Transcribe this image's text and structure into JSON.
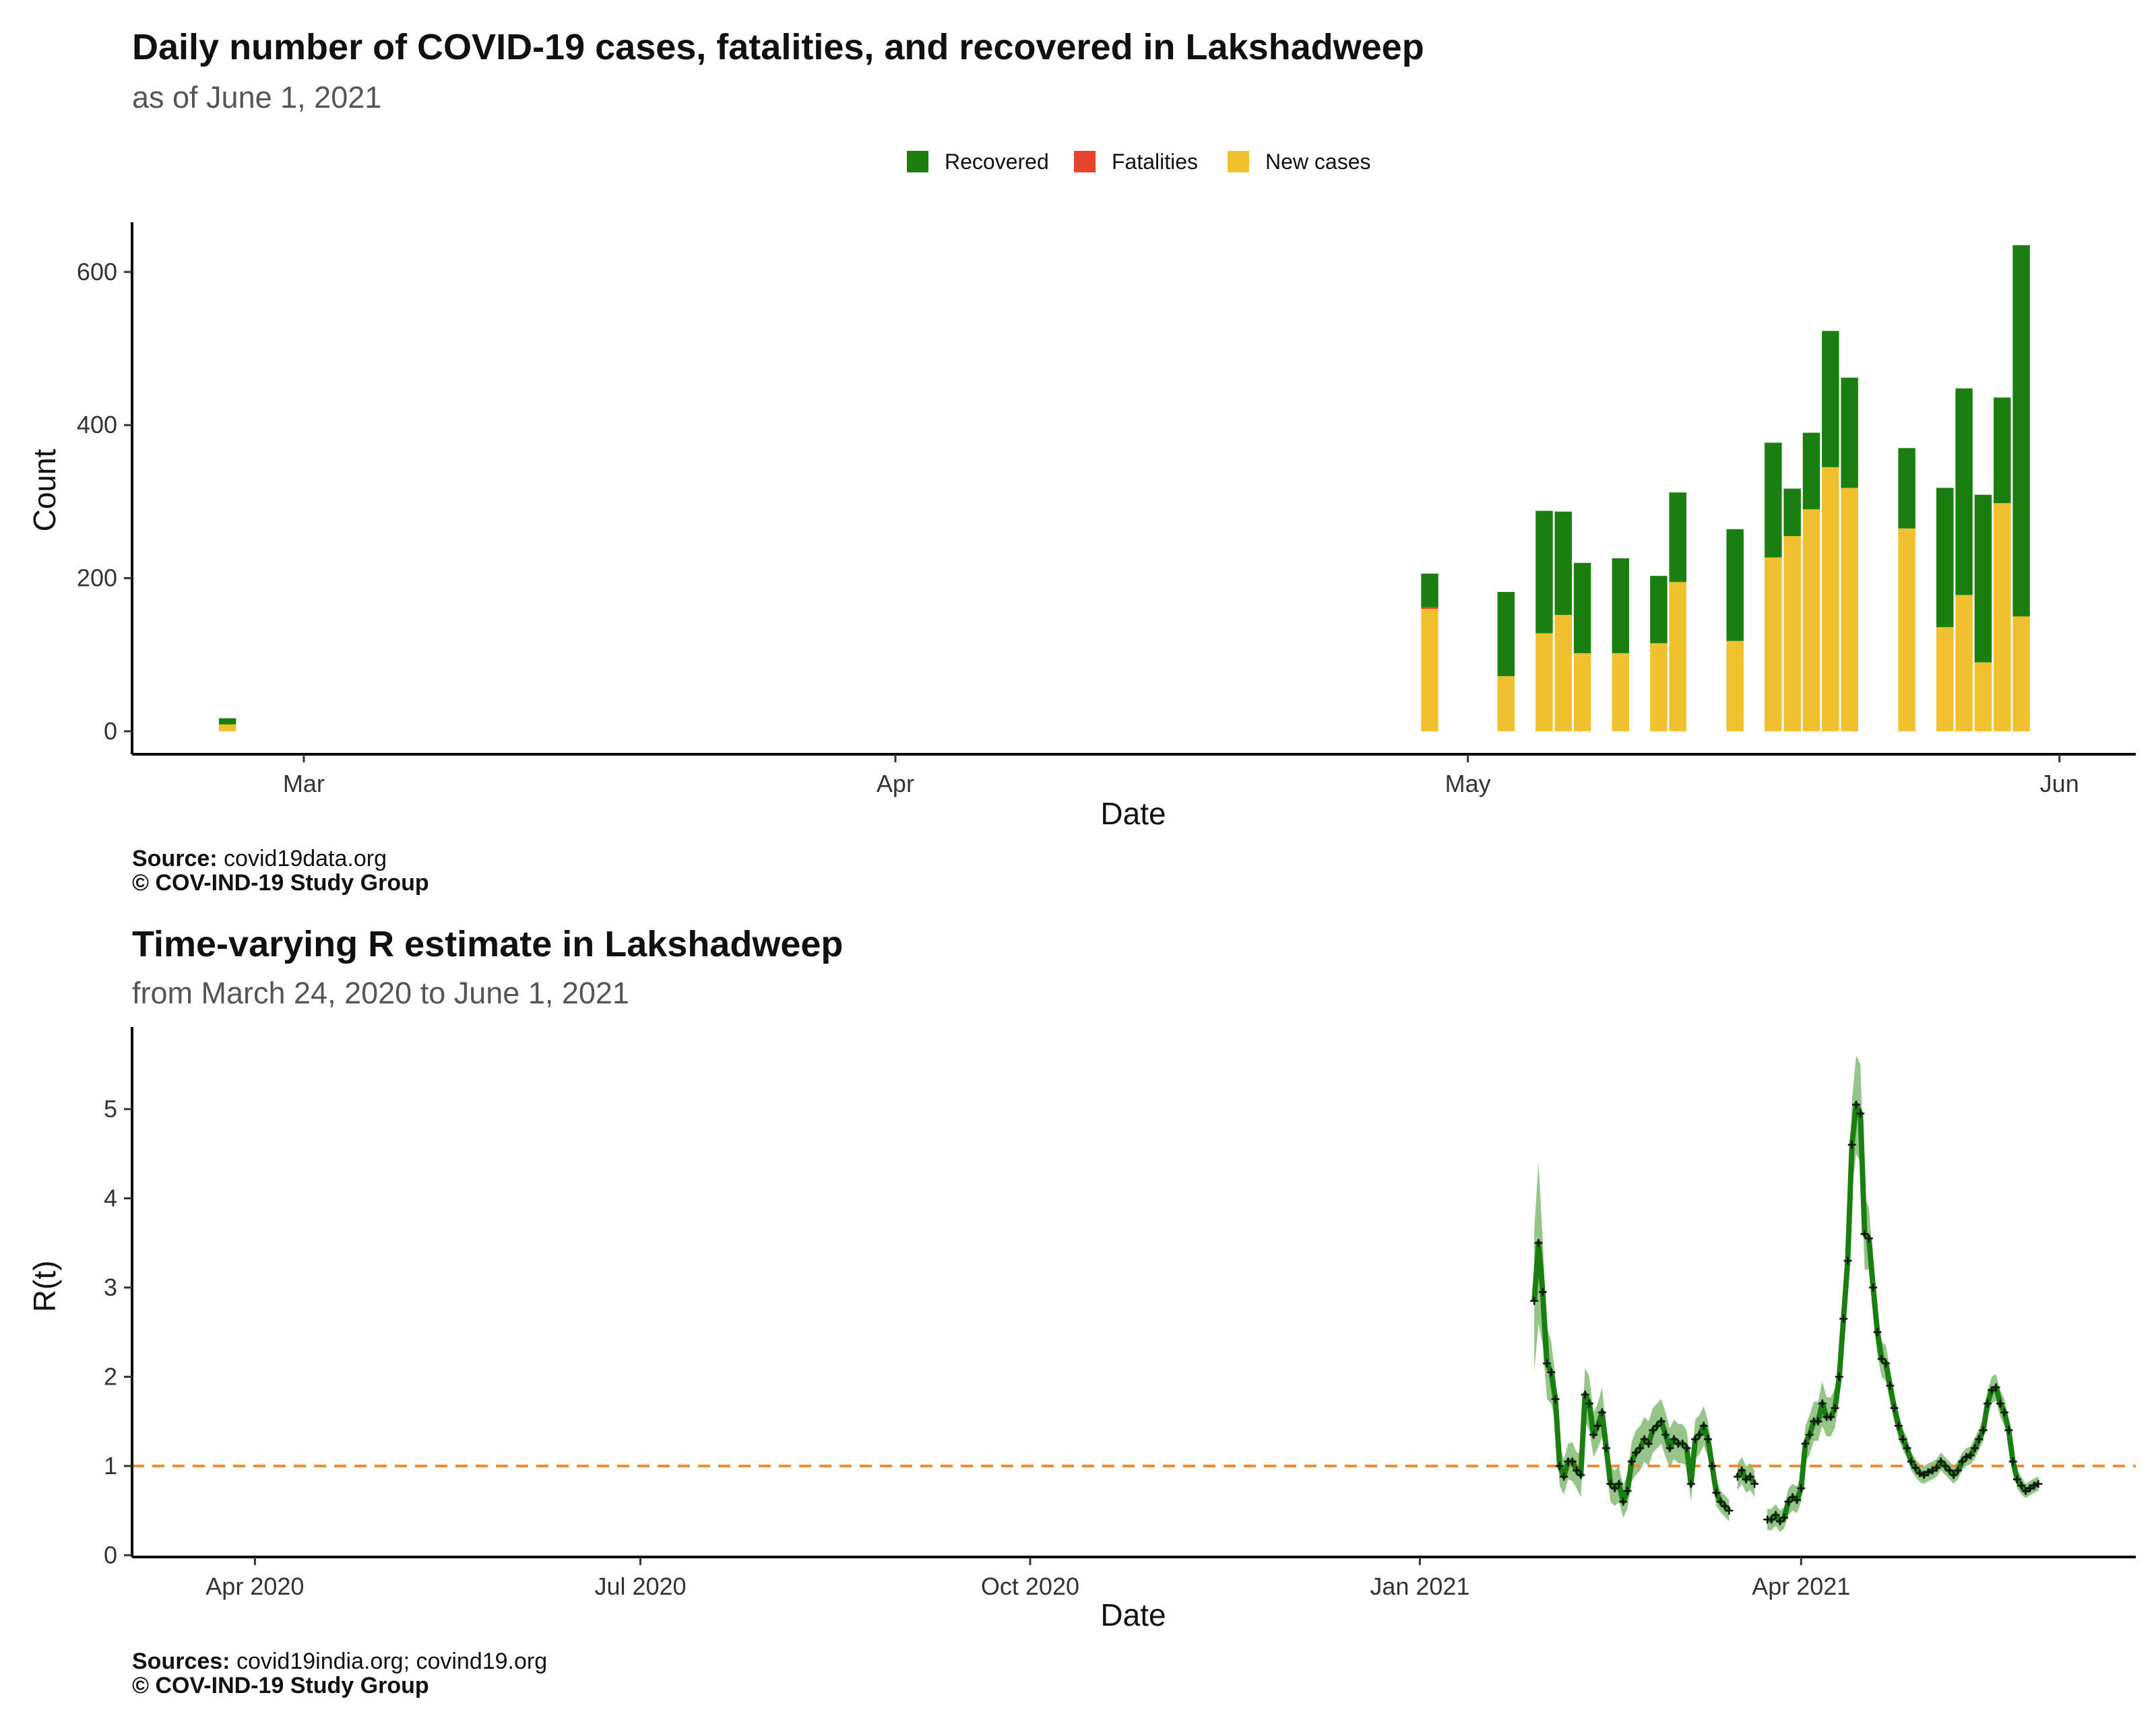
{
  "chart_data": [
    {
      "type": "bar",
      "stacked": true,
      "title": "Daily number of COVID-19 cases, fatalities, and recovered in Lakshadweep",
      "subtitle": "as of June  1, 2021",
      "xlabel": "Date",
      "ylabel": "Count",
      "x_tick_labels": [
        "Mar",
        "Apr",
        "May",
        "Jun"
      ],
      "x_ticks": [
        "2021-03-01",
        "2021-04-01",
        "2021-05-01",
        "2021-06-01"
      ],
      "y_ticks": [
        0,
        200,
        400,
        600
      ],
      "ylim": [
        -30,
        665
      ],
      "xlim": [
        "2021-02-20",
        "2021-06-05"
      ],
      "grid": false,
      "legend_position": "top",
      "colors": {
        "Recovered": "#1a7f10",
        "Fatalities": "#e8432f",
        "New cases": "#f0c02e"
      },
      "legend": [
        "Recovered",
        "Fatalities",
        "New cases"
      ],
      "series_order_bottom_to_top": [
        "New cases",
        "Fatalities",
        "Recovered"
      ],
      "x": [
        "2021-02-25",
        "2021-04-29",
        "2021-05-03",
        "2021-05-05",
        "2021-05-06",
        "2021-05-07",
        "2021-05-09",
        "2021-05-11",
        "2021-05-12",
        "2021-05-15",
        "2021-05-17",
        "2021-05-18",
        "2021-05-19",
        "2021-05-20",
        "2021-05-21",
        "2021-05-24",
        "2021-05-26",
        "2021-05-27",
        "2021-05-28",
        "2021-05-29",
        "2021-05-30"
      ],
      "series": [
        {
          "name": "New cases",
          "values": [
            9,
            160,
            72,
            128,
            152,
            102,
            102,
            115,
            195,
            118,
            227,
            255,
            290,
            345,
            318,
            265,
            136,
            178,
            90,
            298,
            150
          ]
        },
        {
          "name": "Fatalities",
          "values": [
            0,
            2,
            0,
            0,
            0,
            0,
            0,
            0,
            0,
            0,
            0,
            0,
            0,
            0,
            0,
            0,
            0,
            0,
            0,
            0,
            0
          ]
        },
        {
          "name": "Recovered",
          "values": [
            8,
            44,
            110,
            160,
            135,
            118,
            124,
            88,
            117,
            146,
            150,
            62,
            100,
            178,
            144,
            105,
            182,
            270,
            219,
            138,
            485
          ]
        }
      ],
      "source_label": "Source:",
      "source_text": "covid19data.org",
      "copyright": "© COV-IND-19 Study Group"
    },
    {
      "type": "line",
      "title": "Time-varying R estimate in Lakshadweep",
      "subtitle": "from March 24, 2020 to June  1, 2021",
      "xlabel": "Date",
      "ylabel": "R(t)",
      "x_tick_labels": [
        "Apr 2020",
        "Jul 2020",
        "Oct 2020",
        "Jan 2021",
        "Apr 2021"
      ],
      "x_ticks": [
        "2020-04-01",
        "2020-07-01",
        "2020-10-01",
        "2021-01-01",
        "2021-04-01"
      ],
      "y_ticks": [
        0,
        1,
        2,
        3,
        4,
        5
      ],
      "ylim": [
        -0.02,
        5.92
      ],
      "xlim": [
        "2020-03-03",
        "2021-06-19"
      ],
      "reference_line": {
        "y": 1,
        "style": "dashed",
        "color": "#f28a2c"
      },
      "grid": false,
      "colors": {
        "line": "#1a7f10",
        "band": "#8fc283",
        "points": "#111111"
      },
      "series": [
        {
          "start": "2021-01-28",
          "values": [
            2.85,
            3.5,
            2.95,
            2.15,
            2.05,
            1.75,
            1.0,
            0.88,
            1.05,
            1.05,
            0.95,
            0.9,
            1.8,
            1.7,
            1.35,
            1.45,
            1.6,
            1.2,
            0.8,
            0.75,
            0.8,
            0.6,
            0.72,
            1.05,
            1.15,
            1.2,
            1.3,
            1.25,
            1.4,
            1.45,
            1.5,
            1.35,
            1.2,
            1.3,
            1.25,
            1.25,
            1.2,
            0.8,
            1.3,
            1.35,
            1.45,
            1.3,
            1.0,
            0.7,
            0.6,
            0.55,
            0.5,
            null,
            0.88,
            0.95,
            0.85,
            0.88,
            0.8,
            null,
            null,
            0.4,
            0.4,
            0.45,
            0.38,
            0.42,
            0.6,
            0.65,
            0.62,
            0.75,
            1.25,
            1.35,
            1.5,
            1.5,
            1.7,
            1.55,
            1.55,
            1.65,
            2.0,
            2.65,
            3.3,
            4.6,
            5.05,
            4.95,
            3.6,
            3.55,
            3.0,
            2.5,
            2.2,
            2.15,
            1.9,
            1.65,
            1.45,
            1.3,
            1.2,
            1.05,
            0.98,
            0.92,
            0.9,
            0.93,
            0.95,
            0.98,
            1.05,
            1.0,
            0.95,
            0.9,
            0.95,
            1.05,
            1.1,
            1.12,
            1.2,
            1.3,
            1.4,
            1.7,
            1.85,
            1.88,
            1.7,
            1.6,
            1.4,
            1.05,
            0.85,
            0.78,
            0.72,
            0.75,
            0.78,
            0.8
          ],
          "ci_halfwidth": [
            0.8,
            0.9,
            0.6,
            0.4,
            0.35,
            0.25,
            0.22,
            0.2,
            0.2,
            0.22,
            0.2,
            0.25,
            0.3,
            0.3,
            0.25,
            0.25,
            0.28,
            0.22,
            0.2,
            0.2,
            0.2,
            0.18,
            0.2,
            0.22,
            0.25,
            0.25,
            0.25,
            0.25,
            0.25,
            0.25,
            0.25,
            0.25,
            0.22,
            0.22,
            0.22,
            0.22,
            0.2,
            0.2,
            0.22,
            0.22,
            0.22,
            0.2,
            0.18,
            0.15,
            0.12,
            0.12,
            0.12,
            null,
            0.15,
            0.15,
            0.15,
            0.15,
            0.15,
            null,
            null,
            0.12,
            0.12,
            0.12,
            0.12,
            0.12,
            0.15,
            0.15,
            0.15,
            0.15,
            0.2,
            0.22,
            0.22,
            0.22,
            0.25,
            0.22,
            0.22,
            0.22,
            0.25,
            0.35,
            0.4,
            0.5,
            0.55,
            0.55,
            0.4,
            0.35,
            0.3,
            0.25,
            0.2,
            0.2,
            0.18,
            0.15,
            0.15,
            0.12,
            0.12,
            0.1,
            0.1,
            0.1,
            0.1,
            0.1,
            0.1,
            0.1,
            0.1,
            0.1,
            0.1,
            0.1,
            0.1,
            0.1,
            0.1,
            0.1,
            0.12,
            0.12,
            0.12,
            0.15,
            0.15,
            0.15,
            0.15,
            0.15,
            0.12,
            0.1,
            0.1,
            0.1,
            0.08,
            0.08,
            0.08,
            0.08
          ]
        }
      ],
      "source_label": "Sources:",
      "source_text": "covid19india.org; covind19.org",
      "copyright": "© COV-IND-19 Study Group"
    }
  ]
}
